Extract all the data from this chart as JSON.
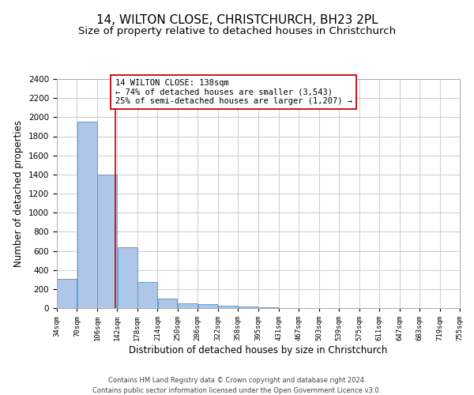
{
  "title": "14, WILTON CLOSE, CHRISTCHURCH, BH23 2PL",
  "subtitle": "Size of property relative to detached houses in Christchurch",
  "xlabel": "Distribution of detached houses by size in Christchurch",
  "ylabel": "Number of detached properties",
  "bar_values": [
    310,
    1950,
    1400,
    640,
    270,
    100,
    50,
    40,
    25,
    15,
    5,
    3,
    2,
    1,
    0,
    0,
    0,
    0,
    0,
    0
  ],
  "bin_edges": [
    34,
    70,
    106,
    142,
    178,
    214,
    250,
    286,
    322,
    358,
    395,
    431,
    467,
    503,
    539,
    575,
    611,
    647,
    683,
    719,
    755
  ],
  "tick_labels": [
    "34sqm",
    "70sqm",
    "106sqm",
    "142sqm",
    "178sqm",
    "214sqm",
    "250sqm",
    "286sqm",
    "322sqm",
    "358sqm",
    "395sqm",
    "431sqm",
    "467sqm",
    "503sqm",
    "539sqm",
    "575sqm",
    "611sqm",
    "647sqm",
    "683sqm",
    "719sqm",
    "755sqm"
  ],
  "bar_color": "#aec6e8",
  "bar_edgecolor": "#5a9fd4",
  "vline_x": 138,
  "vline_color": "#cc0000",
  "annotation_text": "14 WILTON CLOSE: 138sqm\n← 74% of detached houses are smaller (3,543)\n25% of semi-detached houses are larger (1,207) →",
  "annotation_box_color": "#ffffff",
  "annotation_box_edgecolor": "#cc0000",
  "ylim": [
    0,
    2400
  ],
  "yticks": [
    0,
    200,
    400,
    600,
    800,
    1000,
    1200,
    1400,
    1600,
    1800,
    2000,
    2200,
    2400
  ],
  "grid_color": "#cccccc",
  "background_color": "#ffffff",
  "footer_line1": "Contains HM Land Registry data © Crown copyright and database right 2024.",
  "footer_line2": "Contains public sector information licensed under the Open Government Licence v3.0.",
  "title_fontsize": 11,
  "subtitle_fontsize": 9.5,
  "xlabel_fontsize": 8.5,
  "ylabel_fontsize": 8.5,
  "annotation_fontsize": 7.5
}
